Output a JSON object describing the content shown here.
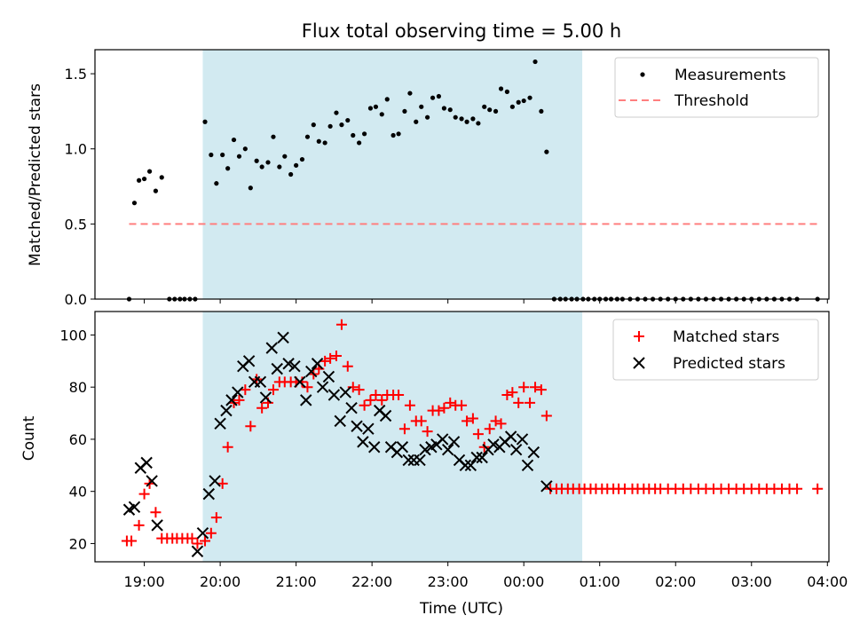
{
  "colors": {
    "band": "#add8e6",
    "measurement": "#000000",
    "threshold": "#ff7f7f",
    "matched": "#ff0000",
    "predicted": "#000000"
  },
  "chart_data": {
    "title": "Flux total observing time = 5.00 h",
    "xlabel": "Time (UTC)",
    "x_ticks": [
      "19:00",
      "20:00",
      "21:00",
      "22:00",
      "23:00",
      "00:00",
      "01:00",
      "02:00",
      "03:00",
      "04:00"
    ],
    "x_unit": "hours since 18:00 UTC",
    "xlim": [
      0.35,
      10.02
    ],
    "observing_window": [
      1.77,
      6.77
    ],
    "top": {
      "type": "scatter",
      "ylabel": "Matched/Predicted stars",
      "ylim": [
        0,
        1.66
      ],
      "y_ticks": [
        "0.0",
        "0.5",
        "1.0",
        "1.5"
      ],
      "legend": [
        "Measurements",
        "Threshold"
      ],
      "legend_position": "top-right",
      "threshold": {
        "value": 0.5,
        "x": [
          0.8,
          9.87
        ]
      },
      "measurements": [
        [
          0.8,
          0
        ],
        [
          0.87,
          0.64
        ],
        [
          0.93,
          0.79
        ],
        [
          1.0,
          0.8
        ],
        [
          1.07,
          0.85
        ],
        [
          1.15,
          0.72
        ],
        [
          1.23,
          0.81
        ],
        [
          1.33,
          0
        ],
        [
          1.4,
          0
        ],
        [
          1.47,
          0
        ],
        [
          1.53,
          0
        ],
        [
          1.6,
          0
        ],
        [
          1.67,
          0
        ],
        [
          1.8,
          1.18
        ],
        [
          1.88,
          0.96
        ],
        [
          1.95,
          0.77
        ],
        [
          2.03,
          0.96
        ],
        [
          2.1,
          0.87
        ],
        [
          2.18,
          1.06
        ],
        [
          2.25,
          0.95
        ],
        [
          2.33,
          1.0
        ],
        [
          2.4,
          0.74
        ],
        [
          2.48,
          0.92
        ],
        [
          2.55,
          0.88
        ],
        [
          2.63,
          0.91
        ],
        [
          2.7,
          1.08
        ],
        [
          2.78,
          0.88
        ],
        [
          2.85,
          0.95
        ],
        [
          2.93,
          0.83
        ],
        [
          3.0,
          0.89
        ],
        [
          3.08,
          0.93
        ],
        [
          3.15,
          1.08
        ],
        [
          3.23,
          1.16
        ],
        [
          3.3,
          1.05
        ],
        [
          3.38,
          1.04
        ],
        [
          3.45,
          1.15
        ],
        [
          3.53,
          1.24
        ],
        [
          3.6,
          1.16
        ],
        [
          3.68,
          1.19
        ],
        [
          3.75,
          1.09
        ],
        [
          3.83,
          1.04
        ],
        [
          3.9,
          1.1
        ],
        [
          3.98,
          1.27
        ],
        [
          4.05,
          1.28
        ],
        [
          4.13,
          1.23
        ],
        [
          4.2,
          1.33
        ],
        [
          4.28,
          1.09
        ],
        [
          4.35,
          1.1
        ],
        [
          4.43,
          1.25
        ],
        [
          4.5,
          1.37
        ],
        [
          4.58,
          1.18
        ],
        [
          4.65,
          1.28
        ],
        [
          4.73,
          1.21
        ],
        [
          4.8,
          1.34
        ],
        [
          4.88,
          1.35
        ],
        [
          4.95,
          1.27
        ],
        [
          5.03,
          1.26
        ],
        [
          5.1,
          1.21
        ],
        [
          5.18,
          1.2
        ],
        [
          5.25,
          1.18
        ],
        [
          5.33,
          1.2
        ],
        [
          5.4,
          1.17
        ],
        [
          5.48,
          1.28
        ],
        [
          5.55,
          1.26
        ],
        [
          5.63,
          1.25
        ],
        [
          5.7,
          1.4
        ],
        [
          5.78,
          1.38
        ],
        [
          5.85,
          1.28
        ],
        [
          5.93,
          1.31
        ],
        [
          6.0,
          1.32
        ],
        [
          6.08,
          1.34
        ],
        [
          6.15,
          1.58
        ],
        [
          6.23,
          1.25
        ],
        [
          6.3,
          0.98
        ],
        [
          6.4,
          0
        ],
        [
          6.48,
          0
        ],
        [
          6.55,
          0
        ],
        [
          6.63,
          0
        ],
        [
          6.7,
          0
        ],
        [
          6.78,
          0
        ],
        [
          6.85,
          0
        ],
        [
          6.93,
          0
        ],
        [
          7.0,
          0
        ],
        [
          7.08,
          0
        ],
        [
          7.15,
          0
        ],
        [
          7.23,
          0
        ],
        [
          7.3,
          0
        ],
        [
          7.4,
          0
        ],
        [
          7.5,
          0
        ],
        [
          7.6,
          0
        ],
        [
          7.7,
          0
        ],
        [
          7.8,
          0
        ],
        [
          7.9,
          0
        ],
        [
          8.0,
          0
        ],
        [
          8.1,
          0
        ],
        [
          8.2,
          0
        ],
        [
          8.3,
          0
        ],
        [
          8.4,
          0
        ],
        [
          8.5,
          0
        ],
        [
          8.6,
          0
        ],
        [
          8.7,
          0
        ],
        [
          8.8,
          0
        ],
        [
          8.9,
          0
        ],
        [
          9.0,
          0
        ],
        [
          9.1,
          0
        ],
        [
          9.2,
          0
        ],
        [
          9.3,
          0
        ],
        [
          9.4,
          0
        ],
        [
          9.5,
          0
        ],
        [
          9.6,
          0
        ],
        [
          9.87,
          0
        ]
      ]
    },
    "bottom": {
      "type": "scatter",
      "ylabel": "Count",
      "ylim": [
        13,
        109
      ],
      "y_ticks": [
        "20",
        "40",
        "60",
        "80",
        "100"
      ],
      "legend": [
        "Matched stars",
        "Predicted stars"
      ],
      "legend_position": "top-right",
      "matched": [
        [
          0.77,
          21
        ],
        [
          0.83,
          21
        ],
        [
          0.93,
          27
        ],
        [
          1.0,
          39
        ],
        [
          1.07,
          43
        ],
        [
          1.15,
          32
        ],
        [
          1.23,
          22
        ],
        [
          1.3,
          22
        ],
        [
          1.37,
          22
        ],
        [
          1.43,
          22
        ],
        [
          1.5,
          22
        ],
        [
          1.57,
          22
        ],
        [
          1.63,
          22
        ],
        [
          1.7,
          20
        ],
        [
          1.8,
          21
        ],
        [
          1.88,
          24
        ],
        [
          1.95,
          30
        ],
        [
          2.03,
          43
        ],
        [
          2.1,
          57
        ],
        [
          2.18,
          74
        ],
        [
          2.25,
          75
        ],
        [
          2.33,
          79
        ],
        [
          2.4,
          65
        ],
        [
          2.48,
          83
        ],
        [
          2.55,
          72
        ],
        [
          2.63,
          74
        ],
        [
          2.7,
          79
        ],
        [
          2.78,
          82
        ],
        [
          2.85,
          82
        ],
        [
          2.93,
          82
        ],
        [
          3.0,
          82
        ],
        [
          3.08,
          82
        ],
        [
          3.15,
          80
        ],
        [
          3.23,
          85
        ],
        [
          3.3,
          87
        ],
        [
          3.38,
          90
        ],
        [
          3.45,
          91
        ],
        [
          3.53,
          92
        ],
        [
          3.6,
          104
        ],
        [
          3.68,
          88
        ],
        [
          3.75,
          80
        ],
        [
          3.83,
          79
        ],
        [
          3.9,
          73
        ],
        [
          3.98,
          75
        ],
        [
          4.05,
          77
        ],
        [
          4.13,
          75
        ],
        [
          4.2,
          77
        ],
        [
          4.28,
          77
        ],
        [
          4.35,
          77
        ],
        [
          4.43,
          64
        ],
        [
          4.5,
          73
        ],
        [
          4.58,
          67
        ],
        [
          4.65,
          67
        ],
        [
          4.73,
          63
        ],
        [
          4.8,
          71
        ],
        [
          4.88,
          71
        ],
        [
          4.95,
          72
        ],
        [
          5.03,
          74
        ],
        [
          5.1,
          73
        ],
        [
          5.18,
          73
        ],
        [
          5.25,
          67
        ],
        [
          5.33,
          68
        ],
        [
          5.4,
          62
        ],
        [
          5.48,
          57
        ],
        [
          5.55,
          64
        ],
        [
          5.63,
          67
        ],
        [
          5.7,
          66
        ],
        [
          5.78,
          77
        ],
        [
          5.85,
          78
        ],
        [
          5.93,
          74
        ],
        [
          6.0,
          80
        ],
        [
          6.08,
          74
        ],
        [
          6.15,
          80
        ],
        [
          6.23,
          79
        ],
        [
          6.3,
          69
        ],
        [
          6.35,
          41
        ],
        [
          6.43,
          41
        ],
        [
          6.5,
          41
        ],
        [
          6.58,
          41
        ],
        [
          6.65,
          41
        ],
        [
          6.73,
          41
        ],
        [
          6.8,
          41
        ],
        [
          6.88,
          41
        ],
        [
          6.95,
          41
        ],
        [
          7.03,
          41
        ],
        [
          7.1,
          41
        ],
        [
          7.18,
          41
        ],
        [
          7.25,
          41
        ],
        [
          7.33,
          41
        ],
        [
          7.43,
          41
        ],
        [
          7.5,
          41
        ],
        [
          7.58,
          41
        ],
        [
          7.65,
          41
        ],
        [
          7.73,
          41
        ],
        [
          7.8,
          41
        ],
        [
          7.9,
          41
        ],
        [
          8.0,
          41
        ],
        [
          8.1,
          41
        ],
        [
          8.2,
          41
        ],
        [
          8.3,
          41
        ],
        [
          8.4,
          41
        ],
        [
          8.5,
          41
        ],
        [
          8.6,
          41
        ],
        [
          8.7,
          41
        ],
        [
          8.8,
          41
        ],
        [
          8.9,
          41
        ],
        [
          9.0,
          41
        ],
        [
          9.1,
          41
        ],
        [
          9.2,
          41
        ],
        [
          9.3,
          41
        ],
        [
          9.4,
          41
        ],
        [
          9.5,
          41
        ],
        [
          9.6,
          41
        ],
        [
          9.87,
          41
        ]
      ],
      "predicted": [
        [
          0.8,
          33
        ],
        [
          0.87,
          34
        ],
        [
          0.95,
          49
        ],
        [
          1.03,
          51
        ],
        [
          1.1,
          44
        ],
        [
          1.17,
          27
        ],
        [
          1.7,
          17
        ],
        [
          1.77,
          24
        ],
        [
          1.85,
          39
        ],
        [
          1.93,
          44
        ],
        [
          2.0,
          66
        ],
        [
          2.08,
          71
        ],
        [
          2.15,
          75
        ],
        [
          2.23,
          78
        ],
        [
          2.3,
          88
        ],
        [
          2.38,
          90
        ],
        [
          2.45,
          82
        ],
        [
          2.53,
          82
        ],
        [
          2.6,
          76
        ],
        [
          2.68,
          95
        ],
        [
          2.75,
          87
        ],
        [
          2.83,
          99
        ],
        [
          2.9,
          89
        ],
        [
          2.98,
          88
        ],
        [
          3.05,
          82
        ],
        [
          3.13,
          75
        ],
        [
          3.2,
          86
        ],
        [
          3.28,
          89
        ],
        [
          3.35,
          80
        ],
        [
          3.43,
          84
        ],
        [
          3.5,
          77
        ],
        [
          3.58,
          67
        ],
        [
          3.65,
          78
        ],
        [
          3.73,
          72
        ],
        [
          3.8,
          65
        ],
        [
          3.88,
          59
        ],
        [
          3.95,
          64
        ],
        [
          4.03,
          57
        ],
        [
          4.1,
          71
        ],
        [
          4.18,
          69
        ],
        [
          4.25,
          57
        ],
        [
          4.33,
          55
        ],
        [
          4.4,
          57
        ],
        [
          4.48,
          52
        ],
        [
          4.55,
          52
        ],
        [
          4.63,
          52
        ],
        [
          4.7,
          56
        ],
        [
          4.78,
          57
        ],
        [
          4.85,
          58
        ],
        [
          4.93,
          60
        ],
        [
          5.0,
          56
        ],
        [
          5.08,
          59
        ],
        [
          5.15,
          52
        ],
        [
          5.23,
          50
        ],
        [
          5.3,
          50
        ],
        [
          5.38,
          53
        ],
        [
          5.45,
          53
        ],
        [
          5.53,
          56
        ],
        [
          5.6,
          58
        ],
        [
          5.68,
          57
        ],
        [
          5.75,
          59
        ],
        [
          5.83,
          61
        ],
        [
          5.9,
          56
        ],
        [
          5.98,
          60
        ],
        [
          6.05,
          50
        ],
        [
          6.13,
          55
        ],
        [
          6.3,
          42
        ]
      ]
    }
  }
}
